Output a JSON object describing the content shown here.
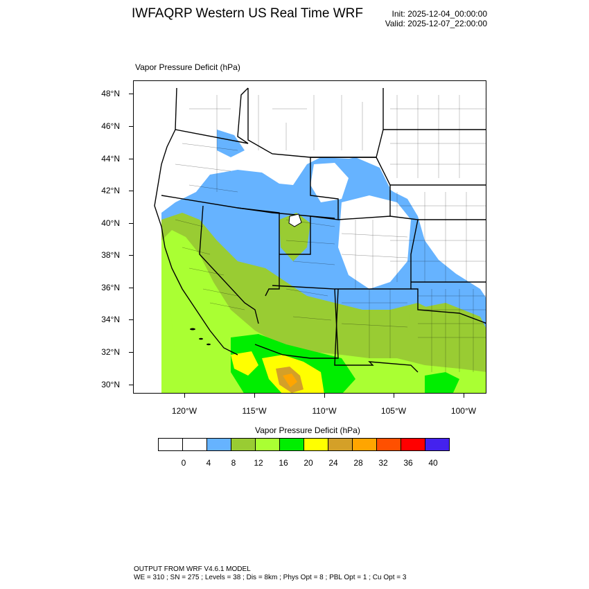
{
  "header": {
    "title": "IWFAQRP Western US Real Time WRF",
    "init": "Init: 2025-12-04_00:00:00",
    "valid": "Valid: 2025-12-07_22:00:00"
  },
  "map": {
    "field_label": "Vapor Pressure Deficit   (hPa)",
    "lat_labels": [
      "48°N",
      "46°N",
      "44°N",
      "42°N",
      "40°N",
      "38°N",
      "36°N",
      "34°N",
      "32°N",
      "30°N"
    ],
    "lon_labels": [
      "120°W",
      "115°W",
      "110°W",
      "105°W",
      "100°W"
    ],
    "colors": {
      "ocean": "#ffffff",
      "light_blue": "#66b3ff",
      "olive_green": "#99cc33",
      "light_green": "#aaff33",
      "green": "#00ee00",
      "yellow": "#ffff00",
      "goldenrod": "#d4a028",
      "orange": "#ffa500"
    }
  },
  "colorbar": {
    "title": "Vapor Pressure Deficit  (hPa)",
    "labels": [
      "0",
      "4",
      "8",
      "12",
      "16",
      "20",
      "24",
      "28",
      "32",
      "36",
      "40"
    ],
    "colors": [
      "#ffffff",
      "#ffffff",
      "#66b3ff",
      "#99cc33",
      "#aaff33",
      "#00ee00",
      "#ffff00",
      "#d4a028",
      "#ffa500",
      "#ff5000",
      "#ff0000",
      "#4422ee"
    ]
  },
  "footer": {
    "line1": "OUTPUT FROM WRF V4.6.1 MODEL",
    "line2": "WE = 310 ; SN = 275 ; Levels = 38 ; Dis = 8km ; Phys Opt = 8 ; PBL Opt = 1 ; Cu Opt = 3"
  }
}
